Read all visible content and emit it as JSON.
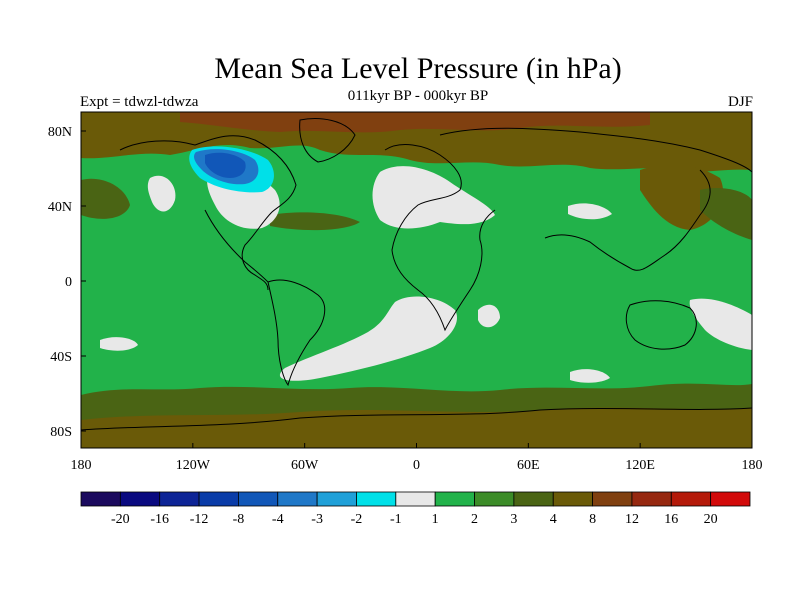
{
  "title": "Mean Sea Level Pressure (in hPa)",
  "subtitle": "011kyr BP - 000kyr BP",
  "left_label": "Expt = tdwzl-tdwza",
  "right_label": "DJF",
  "lat_labels": [
    "80N",
    "40N",
    "0",
    "40S",
    "80S"
  ],
  "lon_labels": [
    "180",
    "120W",
    "60W",
    "0",
    "60E",
    "120E",
    "180"
  ],
  "colorbar": {
    "labels": [
      "-20",
      "-16",
      "-12",
      "-8",
      "-4",
      "-3",
      "-2",
      "-1",
      "1",
      "2",
      "3",
      "4",
      "8",
      "12",
      "16",
      "20"
    ],
    "colors": [
      "#1b0a5e",
      "#0a0a80",
      "#0d2496",
      "#0a3ca8",
      "#1157b8",
      "#1f78c8",
      "#1fa0d8",
      "#00e0e8",
      "#e8e8e8",
      "#22b24a",
      "#3c8c28",
      "#4a6414",
      "#6a5a08",
      "#804010",
      "#962810",
      "#b41a0a",
      "#d20a0a"
    ]
  }
}
